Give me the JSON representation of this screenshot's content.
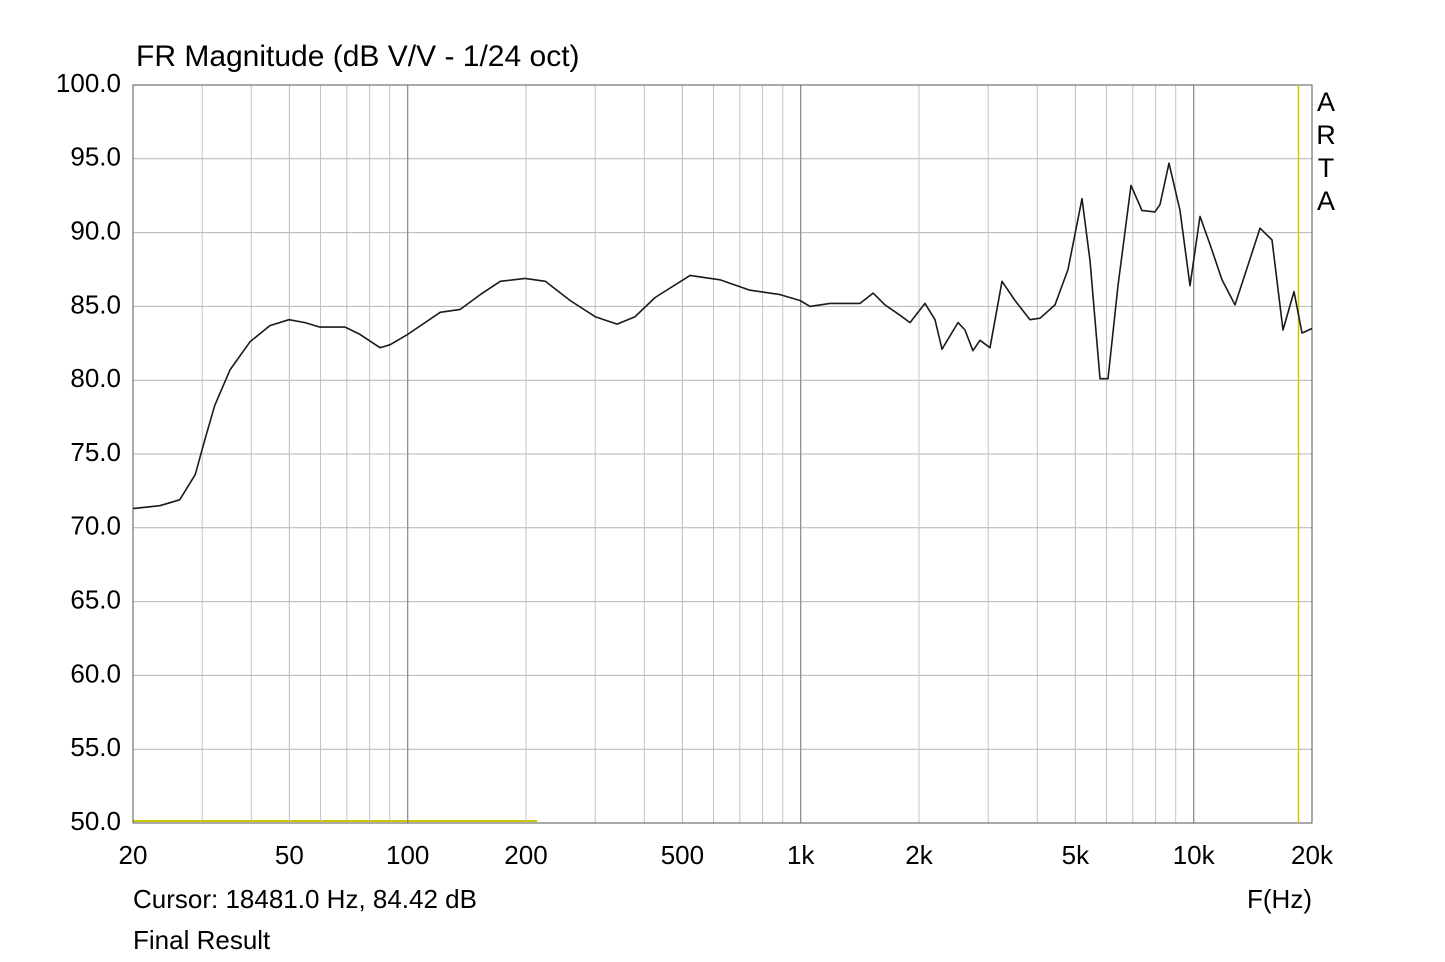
{
  "chart_data": {
    "type": "line",
    "title": "FR Magnitude (dB V/V - 1/24 oct)",
    "x_label": "F(Hz)",
    "watermark": "ARTA",
    "xscale": "log",
    "grid": true,
    "xlim": [
      20,
      20000
    ],
    "ylim": [
      50,
      100
    ],
    "xticks": [
      20,
      50,
      100,
      200,
      500,
      {
        "value": 1000,
        "label": "1k"
      },
      {
        "value": 2000,
        "label": "2k"
      },
      {
        "value": 5000,
        "label": "5k"
      },
      {
        "value": 10000,
        "label": "10k"
      },
      {
        "value": 20000,
        "label": "20k"
      }
    ],
    "yticks": [
      {
        "value": 50,
        "label": "50.0"
      },
      {
        "value": 55,
        "label": "55.0"
      },
      {
        "value": 60,
        "label": "60.0"
      },
      {
        "value": 65,
        "label": "65.0"
      },
      {
        "value": 70,
        "label": "70.0"
      },
      {
        "value": 75,
        "label": "75.0"
      },
      {
        "value": 80,
        "label": "80.0"
      },
      {
        "value": 85,
        "label": "85.0"
      },
      {
        "value": 90,
        "label": "90.0"
      },
      {
        "value": 95,
        "label": "95.0"
      },
      {
        "value": 100,
        "label": "100.0"
      }
    ],
    "cursor": {
      "label": "Cursor: 18481.0 Hz, 84.42 dB",
      "x": 18481,
      "color": "#c8c800"
    },
    "x": [
      20,
      23.4,
      26.3,
      28.8,
      30.5,
      32.3,
      35.3,
      39.7,
      44.6,
      49.9,
      54.8,
      59.8,
      69.3,
      75.6,
      85,
      90.1,
      100,
      121,
      136,
      153,
      172,
      199,
      224,
      259,
      300,
      341,
      379,
      426,
      523,
      623,
      743,
      886,
      996,
      1056,
      1187,
      1416,
      1528,
      1639,
      1790,
      1897,
      2071,
      2196,
      2288,
      2514,
      2618,
      2743,
      2860,
      3032,
      3252,
      3510,
      3832,
      4065,
      4438,
      4787,
      5198,
      5448,
      5776,
      6052,
      6418,
      6926,
      7389,
      7969,
      8208,
      8652,
      9230,
      9788,
      10376,
      11003,
      11803,
      12741,
      13748,
      14749,
      15823,
      16878,
      18000,
      18860,
      20000
    ],
    "series": [
      {
        "name": "Final Result",
        "color": "#1a1a1a",
        "values": [
          71.3,
          71.5,
          71.9,
          73.6,
          76.0,
          78.3,
          80.7,
          82.6,
          83.7,
          84.1,
          83.9,
          83.6,
          83.6,
          83.1,
          82.2,
          82.4,
          83.1,
          84.6,
          84.8,
          85.8,
          86.7,
          86.9,
          86.7,
          85.4,
          84.3,
          83.8,
          84.3,
          85.6,
          87.1,
          86.8,
          86.1,
          85.8,
          85.4,
          85.0,
          85.2,
          85.2,
          85.9,
          85.1,
          84.4,
          83.9,
          85.2,
          84.1,
          82.1,
          83.9,
          83.4,
          82.0,
          82.7,
          82.2,
          86.7,
          85.4,
          84.1,
          84.2,
          85.1,
          87.5,
          92.3,
          88.1,
          80.1,
          80.1,
          86.4,
          93.2,
          91.5,
          91.4,
          91.9,
          94.7,
          91.5,
          86.4,
          91.1,
          89.2,
          86.8,
          85.1,
          87.8,
          90.3,
          89.5,
          83.4,
          86.0,
          83.2,
          83.5
        ]
      }
    ]
  }
}
